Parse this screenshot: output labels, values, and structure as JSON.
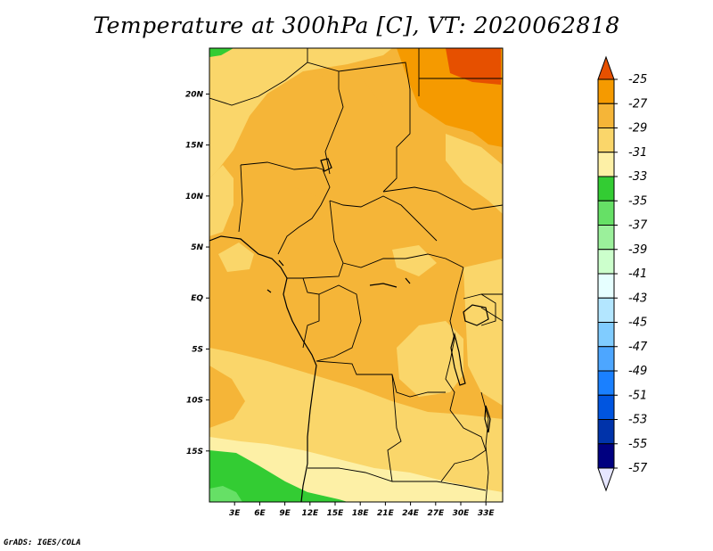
{
  "title": "Temperature at 300hPa [C], VT: 2020062818",
  "credit": "GrADS: IGES/COLA",
  "map": {
    "lon_range": [
      0,
      35
    ],
    "lat_range": [
      -20,
      24.5
    ],
    "lat_ticks": [
      {
        "value": 20,
        "label": "20N"
      },
      {
        "value": 15,
        "label": "15N"
      },
      {
        "value": 10,
        "label": "10N"
      },
      {
        "value": 5,
        "label": "5N"
      },
      {
        "value": 0,
        "label": "EQ"
      },
      {
        "value": -5,
        "label": "5S"
      },
      {
        "value": -10,
        "label": "10S"
      },
      {
        "value": -15,
        "label": "15S"
      }
    ],
    "lon_ticks": [
      {
        "value": 3,
        "label": "3E"
      },
      {
        "value": 6,
        "label": "6E"
      },
      {
        "value": 9,
        "label": "9E"
      },
      {
        "value": 12,
        "label": "12E"
      },
      {
        "value": 15,
        "label": "15E"
      },
      {
        "value": 18,
        "label": "18E"
      },
      {
        "value": 21,
        "label": "21E"
      },
      {
        "value": 24,
        "label": "24E"
      },
      {
        "value": 27,
        "label": "27E"
      },
      {
        "value": 30,
        "label": "30E"
      },
      {
        "value": 33,
        "label": "33E"
      }
    ]
  },
  "colorbar": {
    "levels": [
      "-25",
      "-27",
      "-29",
      "-31",
      "-33",
      "-35",
      "-37",
      "-39",
      "-41",
      "-43",
      "-45",
      "-47",
      "-49",
      "-51",
      "-53",
      "-55",
      "-57"
    ],
    "colors": [
      "#e65000",
      "#f59a00",
      "#f5b538",
      "#fad66a",
      "#fdf0a6",
      "#33cc33",
      "#66e066",
      "#9bf09b",
      "#ccffcc",
      "#e6ffff",
      "#b3e6ff",
      "#80ccff",
      "#4da6ff",
      "#1a80ff",
      "#0055e0",
      "#0033aa",
      "#000080",
      "#e6e6ff"
    ]
  },
  "colors": {
    "c_m25_up": "#e65000",
    "c_m27_m25": "#f59a00",
    "c_m29_m27": "#f5b538",
    "c_m31_m29": "#fad66a",
    "c_m33_m31": "#fdf0a6",
    "c_m35_m33": "#fdf0a6",
    "c_m37_m35": "#33cc33",
    "c_m39_m37": "#66e066"
  }
}
